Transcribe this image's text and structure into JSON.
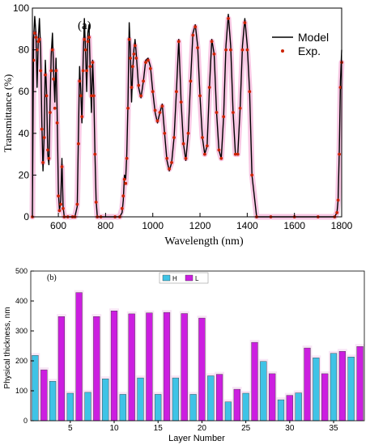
{
  "chart_data": [
    {
      "type": "line",
      "panel_label": "(a)",
      "xlabel": "Wavelength (nm)",
      "ylabel": "Transmittance (%)",
      "xlim": [
        490,
        1800
      ],
      "ylim": [
        0,
        100
      ],
      "xticks": [
        600,
        800,
        1000,
        1200,
        1400,
        1600,
        1800
      ],
      "yticks": [
        0,
        20,
        40,
        60,
        80,
        100
      ],
      "legend_position": "top-right",
      "grid": false,
      "colors": {
        "model": "#000000",
        "exp": "#cc2200",
        "exp_halo": "#f7c7e3"
      },
      "series": [
        {
          "name": "Model",
          "x": [
            490,
            495,
            500,
            505,
            510,
            515,
            520,
            525,
            530,
            535,
            540,
            545,
            550,
            555,
            560,
            565,
            570,
            575,
            580,
            585,
            590,
            595,
            600,
            605,
            610,
            615,
            620,
            625,
            640,
            660,
            670,
            680,
            685,
            690,
            695,
            700,
            705,
            710,
            715,
            720,
            725,
            730,
            735,
            740,
            745,
            750,
            755,
            760,
            765,
            780,
            840,
            860,
            870,
            875,
            880,
            885,
            890,
            895,
            900,
            905,
            910,
            915,
            920,
            925,
            930,
            940,
            950,
            960,
            970,
            980,
            990,
            1000,
            1010,
            1020,
            1030,
            1040,
            1050,
            1060,
            1070,
            1080,
            1090,
            1100,
            1110,
            1120,
            1130,
            1140,
            1150,
            1160,
            1170,
            1180,
            1190,
            1200,
            1210,
            1220,
            1230,
            1240,
            1250,
            1260,
            1270,
            1280,
            1290,
            1300,
            1310,
            1320,
            1330,
            1340,
            1350,
            1360,
            1370,
            1380,
            1390,
            1400,
            1410,
            1420,
            1440,
            1500,
            1600,
            1700,
            1770,
            1780,
            1785,
            1790,
            1795,
            1800
          ],
          "y": [
            0,
            85,
            96,
            88,
            62,
            85,
            95,
            80,
            45,
            22,
            40,
            75,
            60,
            30,
            25,
            55,
            78,
            88,
            70,
            55,
            76,
            50,
            12,
            3,
            8,
            28,
            5,
            0,
            0,
            0,
            0,
            5,
            40,
            72,
            60,
            45,
            75,
            95,
            80,
            60,
            88,
            92,
            70,
            50,
            75,
            60,
            30,
            8,
            0,
            0,
            0,
            0,
            2,
            8,
            20,
            18,
            30,
            55,
            93,
            80,
            55,
            70,
            80,
            85,
            78,
            62,
            57,
            65,
            75,
            76,
            72,
            60,
            50,
            45,
            50,
            54,
            40,
            27,
            22,
            26,
            38,
            60,
            85,
            55,
            35,
            27,
            40,
            65,
            88,
            92,
            82,
            58,
            38,
            30,
            34,
            62,
            85,
            78,
            50,
            32,
            28,
            48,
            82,
            97,
            82,
            50,
            30,
            30,
            52,
            82,
            95,
            82,
            60,
            20,
            0,
            0,
            0,
            0,
            0,
            2,
            8,
            32,
            65,
            80
          ]
        },
        {
          "name": "Exp.",
          "x": [
            490,
            495,
            500,
            505,
            510,
            515,
            520,
            525,
            530,
            535,
            540,
            545,
            550,
            555,
            560,
            565,
            570,
            575,
            580,
            585,
            590,
            595,
            600,
            605,
            610,
            615,
            620,
            625,
            640,
            660,
            670,
            680,
            685,
            690,
            695,
            700,
            705,
            710,
            715,
            720,
            725,
            730,
            735,
            740,
            745,
            750,
            755,
            760,
            765,
            780,
            840,
            860,
            870,
            875,
            880,
            885,
            890,
            895,
            900,
            905,
            910,
            915,
            920,
            925,
            930,
            940,
            950,
            960,
            970,
            980,
            990,
            1000,
            1010,
            1020,
            1030,
            1040,
            1050,
            1060,
            1070,
            1080,
            1090,
            1100,
            1110,
            1120,
            1130,
            1140,
            1150,
            1160,
            1170,
            1180,
            1190,
            1200,
            1210,
            1220,
            1230,
            1240,
            1250,
            1260,
            1270,
            1280,
            1290,
            1300,
            1310,
            1320,
            1330,
            1340,
            1350,
            1360,
            1370,
            1380,
            1390,
            1400,
            1410,
            1420,
            1440,
            1500,
            1600,
            1700,
            1770,
            1780,
            1785,
            1790,
            1795,
            1800
          ],
          "y": [
            0,
            75,
            88,
            86,
            80,
            84,
            85,
            70,
            42,
            26,
            38,
            68,
            58,
            32,
            28,
            50,
            70,
            80,
            66,
            52,
            70,
            45,
            10,
            3,
            6,
            24,
            4,
            0,
            0,
            0,
            0,
            6,
            35,
            65,
            58,
            48,
            70,
            85,
            80,
            70,
            84,
            86,
            72,
            58,
            74,
            58,
            30,
            7,
            0,
            0,
            0,
            0,
            4,
            10,
            18,
            16,
            28,
            52,
            85,
            76,
            62,
            72,
            78,
            82,
            76,
            63,
            58,
            65,
            74,
            75,
            71,
            60,
            51,
            46,
            50,
            53,
            40,
            28,
            23,
            26,
            38,
            60,
            84,
            55,
            35,
            28,
            40,
            65,
            87,
            91,
            81,
            58,
            38,
            30,
            34,
            62,
            84,
            78,
            50,
            32,
            28,
            48,
            80,
            95,
            80,
            50,
            30,
            30,
            52,
            80,
            93,
            80,
            60,
            20,
            0,
            0,
            0,
            0,
            0,
            2,
            8,
            30,
            62,
            74
          ]
        }
      ]
    },
    {
      "type": "bar",
      "panel_label": "(b)",
      "xlabel": "Layer Number",
      "ylabel": "Physical thickness, nm",
      "xlim": [
        0.5,
        38.5
      ],
      "ylim": [
        0,
        500
      ],
      "xticks": [
        5,
        10,
        15,
        20,
        25,
        30,
        35
      ],
      "yticks": [
        0,
        100,
        200,
        300,
        400,
        500
      ],
      "legend_position": "top-center",
      "grid": false,
      "colors": {
        "H": "#3fc3e6",
        "L": "#cc1ee0"
      },
      "layers": [
        1,
        2,
        3,
        4,
        5,
        6,
        7,
        8,
        9,
        10,
        11,
        12,
        13,
        14,
        15,
        16,
        17,
        18,
        19,
        20,
        21,
        22,
        23,
        24,
        25,
        26,
        27,
        28,
        29,
        30,
        31,
        32,
        33,
        34,
        35,
        36,
        37,
        38
      ],
      "series": [
        {
          "name": "H",
          "values": [
            218,
            null,
            132,
            null,
            92,
            null,
            95,
            null,
            140,
            null,
            88,
            null,
            143,
            null,
            88,
            null,
            143,
            null,
            88,
            null,
            150,
            null,
            63,
            null,
            92,
            null,
            198,
            null,
            70,
            null,
            93,
            null,
            210,
            null,
            225,
            null,
            213,
            null
          ]
        },
        {
          "name": "L",
          "values": [
            null,
            170,
            null,
            348,
            null,
            428,
            null,
            348,
            null,
            367,
            null,
            357,
            null,
            360,
            null,
            362,
            null,
            358,
            null,
            343,
            null,
            155,
            null,
            105,
            null,
            262,
            null,
            157,
            null,
            85,
            null,
            243,
            null,
            157,
            null,
            232,
            null,
            248
          ]
        }
      ]
    }
  ]
}
